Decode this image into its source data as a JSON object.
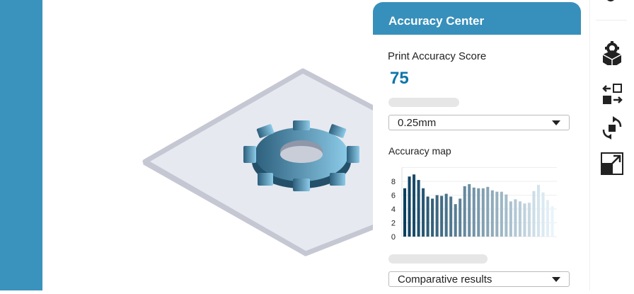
{
  "panel": {
    "title": "Accuracy Center",
    "score_label": "Print Accuracy Score",
    "score": "75",
    "tolerance_select": "0.25mm",
    "map_label": "Accuracy map",
    "comparison_select": "Comparative results"
  },
  "colors": {
    "accent": "#3790bb",
    "score": "#0f75a8",
    "sidebar": "#3a93bd"
  },
  "toolbar": {
    "icons": [
      "gear-box-icon",
      "swap-layout-icon",
      "rotate-icon",
      "expand-icon"
    ]
  },
  "chart_data": {
    "type": "bar",
    "title": "Accuracy map",
    "ylim": [
      0,
      10
    ],
    "yticks": [
      0,
      2,
      4,
      6,
      8
    ],
    "grid": true,
    "values": [
      7.0,
      8.7,
      9.0,
      8.2,
      7.0,
      5.8,
      5.5,
      6.0,
      5.9,
      6.2,
      5.8,
      4.7,
      5.5,
      7.3,
      7.6,
      7.1,
      7.0,
      7.0,
      7.2,
      6.7,
      6.5,
      6.5,
      6.1,
      5.1,
      5.4,
      5.1,
      4.8,
      4.9,
      6.6,
      7.5,
      6.4,
      5.3,
      4.4
    ],
    "color_gradient": [
      "#0b3f5e",
      "#e9f4fb"
    ]
  }
}
